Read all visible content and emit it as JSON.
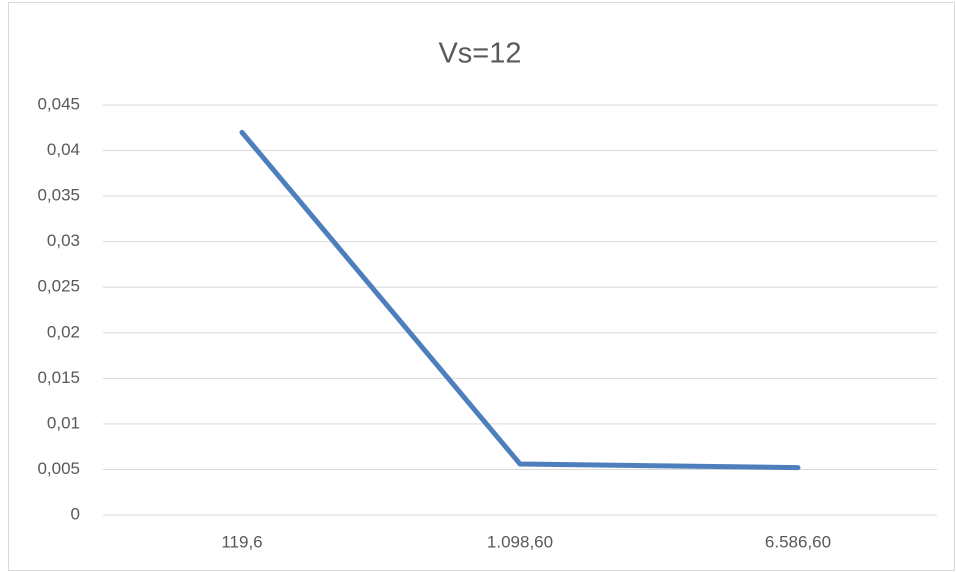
{
  "chart_data": {
    "type": "line",
    "title": "Vs=12",
    "categories": [
      "119,6",
      "1.098,60",
      "6.586,60"
    ],
    "series": [
      {
        "color": "#4e7fbd",
        "values": [
          0.042,
          0.0056,
          0.0052
        ]
      }
    ],
    "ylim": [
      0,
      0.045
    ],
    "yticks": [
      0,
      {
        "value": 0.005,
        "label": "0,005"
      },
      {
        "value": 0.01,
        "label": "0,01"
      },
      {
        "value": 0.015,
        "label": "0,015"
      },
      {
        "value": 0.02,
        "label": "0,02"
      },
      {
        "value": 0.025,
        "label": "0,025"
      },
      {
        "value": 0.03,
        "label": "0,03"
      },
      {
        "value": 0.035,
        "label": "0,035"
      },
      {
        "value": 0.04,
        "label": "0,04"
      },
      {
        "value": 0.045,
        "label": "0,045"
      }
    ],
    "grid": true
  }
}
